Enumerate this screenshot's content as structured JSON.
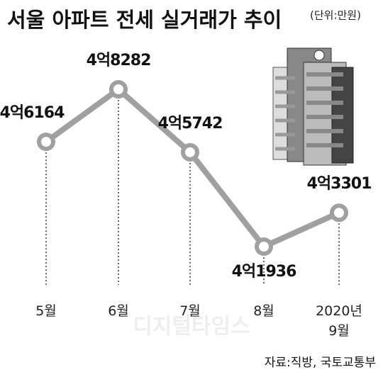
{
  "chart_data": {
    "type": "line",
    "title": "서울 아파트 전세 실거래가 추이",
    "unit": "(단위:만원)",
    "categories": [
      "5월",
      "6월",
      "7월",
      "8월",
      "2020년\n9월"
    ],
    "series": [
      {
        "color": "#a0a0a0",
        "values": [
          46164,
          48282,
          45742,
          41936,
          43301
        ],
        "value_labels": [
          "4억6164",
          "4억8282",
          "4억5742",
          "4억1936",
          "4억3301"
        ]
      }
    ],
    "watermark": "디지털타임스",
    "source": "자료:직방, 국토교통부"
  }
}
